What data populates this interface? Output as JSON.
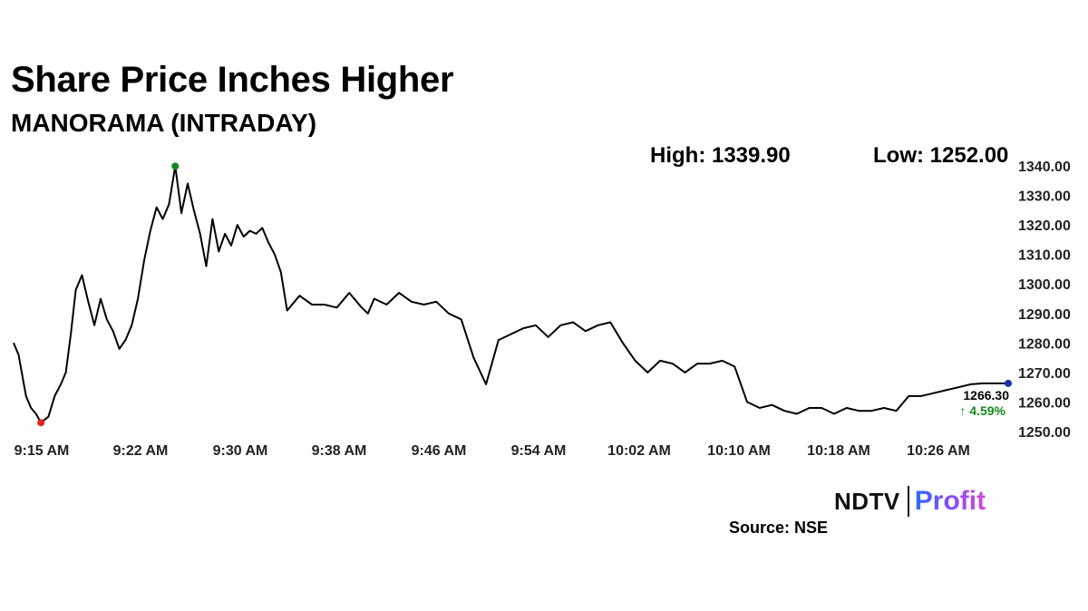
{
  "header": {
    "title": "Share Price Inches Higher",
    "subtitle": "MANORAMA (INTRADAY)",
    "high_label": "High: 1339.90",
    "low_label": "Low: 1252.00"
  },
  "callout": {
    "last_price": "1266.30",
    "change": "↑ 4.59%",
    "change_color": "#138a1b"
  },
  "brand": {
    "ndtv": "NDTV",
    "profit": "Profit",
    "source": "Source: NSE"
  },
  "colors": {
    "line": "#000000",
    "high_marker": "#138a1b",
    "low_marker": "#e0211f",
    "last_marker": "#1b2fa8"
  },
  "chart_data": {
    "type": "line",
    "title": "Share Price Inches Higher",
    "subtitle": "MANORAMA (INTRADAY)",
    "x_ticks": [
      "9:15 AM",
      "9:22 AM",
      "9:30 AM",
      "9:38 AM",
      "9:46 AM",
      "9:54 AM",
      "10:02 AM",
      "10:10 AM",
      "10:18 AM",
      "10:26 AM"
    ],
    "y_ticks": [
      "1250.00",
      "1260.00",
      "1270.00",
      "1280.00",
      "1290.00",
      "1300.00",
      "1310.00",
      "1320.00",
      "1330.00",
      "1340.00"
    ],
    "ylim": [
      1250,
      1340
    ],
    "xlim": [
      0,
      80
    ],
    "x_unit": "minutes after 9:15 AM",
    "grid": false,
    "series": [
      {
        "name": "MANORAMA",
        "x": [
          0,
          0.4,
          1,
          1.4,
          1.8,
          2.2,
          2.8,
          3.3,
          3.8,
          4.2,
          4.6,
          5,
          5.5,
          6,
          6.5,
          7,
          7.5,
          8,
          8.5,
          9,
          9.5,
          10,
          10.5,
          11,
          11.5,
          12,
          12.5,
          13,
          13.5,
          14,
          14.5,
          15,
          15.5,
          16,
          16.5,
          17,
          17.5,
          18,
          18.5,
          19,
          19.5,
          20,
          20.5,
          21,
          21.5,
          22,
          23,
          24,
          25,
          26,
          27,
          28,
          28.5,
          29,
          30,
          31,
          32,
          33,
          34,
          35,
          36,
          37,
          38,
          39,
          40,
          41,
          42,
          43,
          44,
          45,
          46,
          47,
          48,
          49,
          50,
          51,
          52,
          53,
          54,
          55,
          56,
          57,
          58,
          59,
          60,
          61,
          62,
          63,
          64,
          65,
          66,
          67,
          68,
          69,
          70,
          71,
          72,
          73,
          74,
          75,
          76,
          77,
          78,
          79,
          80
        ],
        "values": [
          1280,
          1276,
          1262,
          1258,
          1256,
          1253,
          1255,
          1262,
          1266,
          1270,
          1283,
          1298,
          1303,
          1294,
          1286,
          1295,
          1288,
          1284,
          1278,
          1281,
          1286,
          1295,
          1308,
          1318,
          1326,
          1322,
          1327,
          1339.9,
          1324,
          1334,
          1325,
          1317,
          1306,
          1322,
          1311,
          1317,
          1313,
          1320,
          1316,
          1318,
          1317,
          1319,
          1314,
          1310,
          1304,
          1291,
          1296,
          1293,
          1293,
          1292,
          1297,
          1292,
          1290,
          1295,
          1293,
          1297,
          1294,
          1293,
          1294,
          1290,
          1288,
          1275,
          1266,
          1281,
          1283,
          1285,
          1286,
          1282,
          1286,
          1287,
          1284,
          1286,
          1287,
          1280,
          1274,
          1270,
          1274,
          1273,
          1270,
          1273,
          1273,
          1274,
          1272,
          1260,
          1258,
          1259,
          1257,
          1256,
          1258,
          1258,
          1256,
          1258,
          1257,
          1257,
          1258,
          1257,
          1262,
          1262,
          1263,
          1264,
          1265,
          1266,
          1266.3,
          1266.3,
          1266.3
        ],
        "markers": {
          "high": {
            "x": 13,
            "value": 1339.9
          },
          "low": {
            "x": 2.2,
            "value": 1253
          },
          "last": {
            "x": 80,
            "value": 1266.3
          }
        }
      }
    ]
  }
}
